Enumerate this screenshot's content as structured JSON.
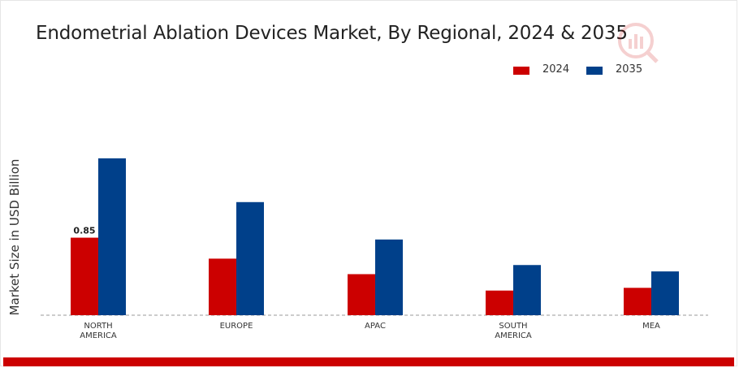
{
  "chart_data": {
    "type": "bar",
    "title": "Endometrial Ablation Devices Market, By Regional, 2024 & 2035",
    "ylabel": "Market Size in USD Billion",
    "xlabel": "",
    "categories": [
      "NORTH AMERICA",
      "EUROPE",
      "APAC",
      "SOUTH AMERICA",
      "MEA"
    ],
    "series": [
      {
        "name": "2024",
        "color": "#cc0000",
        "values": [
          0.85,
          0.62,
          0.45,
          0.27,
          0.3
        ]
      },
      {
        "name": "2035",
        "color": "#00408a",
        "values": [
          1.72,
          1.24,
          0.83,
          0.55,
          0.48
        ]
      }
    ],
    "data_labels": [
      {
        "series": 0,
        "index": 0,
        "text": "0.85"
      }
    ],
    "ylim": [
      0,
      2.2
    ],
    "grid": false,
    "legend": "top-right"
  }
}
